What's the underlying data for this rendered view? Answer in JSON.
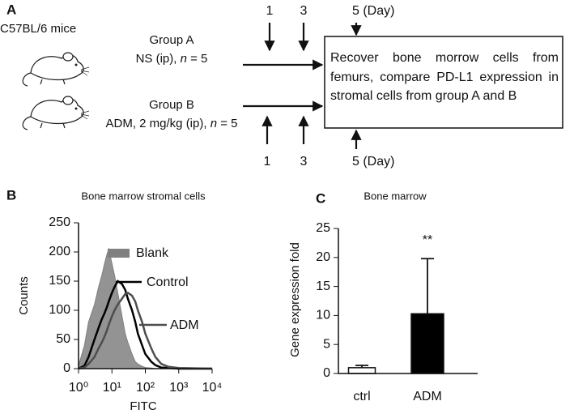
{
  "panel_a": {
    "label": "A",
    "mice": "C57BL/6 mice",
    "groups": [
      {
        "name": "Group A",
        "treatment": "NS (ip), ",
        "n_symbol": "n",
        "n_value": " = 5"
      },
      {
        "name": "Group B",
        "treatment": "ADM, 2 mg/kg (ip), ",
        "n_symbol": "n",
        "n_value": " = 5"
      }
    ],
    "days_top": [
      "1",
      "3",
      "5 (Day)"
    ],
    "days_bottom": [
      "1",
      "3",
      "5 (Day)"
    ],
    "outcome": "Recover bone morrow cells from femurs, compare PD-L1 expression in stromal cells from group A and B"
  },
  "chart_data": [
    {
      "type": "line",
      "panel": "B",
      "title": "Bone marrow stromal cells",
      "xlabel": "FITC",
      "ylabel": "Counts",
      "log_x": true,
      "x": [
        1,
        1.5,
        2,
        3,
        4,
        5,
        6,
        7,
        8,
        10,
        12,
        15,
        20,
        25,
        30,
        40,
        50,
        60,
        80,
        100,
        150,
        200,
        300,
        500,
        1000,
        10000
      ],
      "series": [
        {
          "name": "Blank",
          "color": "#808080",
          "fill": true,
          "values": [
            5,
            40,
            80,
            110,
            140,
            160,
            180,
            195,
            205,
            180,
            160,
            130,
            90,
            60,
            45,
            25,
            12,
            8,
            4,
            2,
            1,
            0,
            0,
            0,
            0,
            0
          ]
        },
        {
          "name": "Control",
          "color": "#000000",
          "fill": false,
          "values": [
            0,
            5,
            20,
            50,
            70,
            85,
            95,
            105,
            115,
            130,
            140,
            150,
            145,
            135,
            120,
            100,
            80,
            60,
            40,
            25,
            12,
            6,
            2,
            1,
            0,
            0
          ]
        },
        {
          "name": "ADM",
          "color": "#4d4d4d",
          "fill": false,
          "values": [
            0,
            2,
            8,
            20,
            35,
            45,
            55,
            65,
            75,
            90,
            100,
            110,
            120,
            128,
            130,
            125,
            115,
            100,
            80,
            60,
            35,
            20,
            8,
            3,
            1,
            0
          ]
        }
      ],
      "xlim": [
        1,
        10000
      ],
      "xticks": [
        {
          "value": 1,
          "label": "10⁰"
        },
        {
          "value": 10,
          "label": "10¹"
        },
        {
          "value": 100,
          "label": "10²"
        },
        {
          "value": 1000,
          "label": "10³"
        },
        {
          "value": 10000,
          "label": "10⁴"
        }
      ],
      "ylim": [
        0,
        250
      ],
      "yticks": [
        0,
        50,
        100,
        150,
        200,
        250
      ]
    },
    {
      "type": "bar",
      "panel": "C",
      "title": "Bone marrow",
      "ylabel": "Gene expression fold",
      "categories": [
        "ctrl",
        "ADM"
      ],
      "values": [
        1,
        10.3
      ],
      "errors": [
        0.4,
        9.5
      ],
      "colors": [
        "#ffffff",
        "#000000"
      ],
      "annotation": "**",
      "ylim": [
        0,
        25
      ],
      "yticks": [
        0,
        5,
        10,
        15,
        20,
        25
      ]
    }
  ]
}
